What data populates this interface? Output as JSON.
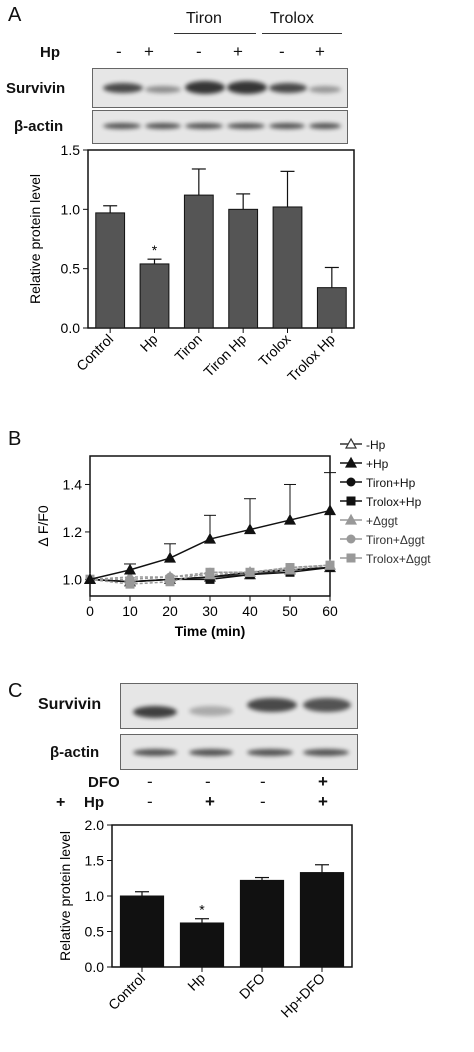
{
  "panelA": {
    "letter": "A",
    "group_tiron": "Tiron",
    "group_trolox": "Trolox",
    "hp_row_label": "Hp",
    "hp_signs": [
      "-",
      "+",
      "-",
      "+",
      "-",
      "+"
    ],
    "blot_survivin_label": "Survivin",
    "blot_actin_label": "β-actin"
  },
  "panelB": {
    "letter": "B",
    "legend": [
      "-Hp",
      "+Hp",
      "Tiron+Hp",
      "Trolox+Hp",
      "+Δggt",
      "Tiron+Δggt",
      "Trolox+Δggt"
    ]
  },
  "panelC": {
    "letter": "C",
    "blot_survivin_label": "Survivin",
    "blot_actin_label": "β-actin",
    "dfo_row_label": "DFO",
    "hp_row_label": "Hp",
    "plus_prefix": "+",
    "dfo_signs": [
      "-",
      "-",
      "-",
      "+"
    ],
    "hp_signs": [
      "-",
      "+",
      "-",
      "+"
    ]
  },
  "chart_data": [
    {
      "type": "bar",
      "categories": [
        "Control",
        "Hp",
        "Tiron",
        "Tiron Hp",
        "Trolox",
        "Trolox Hp"
      ],
      "values": [
        0.97,
        0.54,
        1.12,
        1.0,
        1.02,
        0.34
      ],
      "errors": [
        0.06,
        0.04,
        0.22,
        0.13,
        0.3,
        0.17
      ],
      "significance": [
        "",
        "*",
        "",
        "",
        "",
        ""
      ],
      "ylabel": "Relative protein level",
      "ylim": [
        0,
        1.5
      ],
      "yticks": [
        "0.0",
        "0.5",
        "1.0",
        "1.5"
      ],
      "bar_color": "#555555"
    },
    {
      "type": "line",
      "x": [
        0,
        10,
        20,
        30,
        40,
        50,
        60
      ],
      "xlabel": "Time (min)",
      "ylabel": "Δ F/F0",
      "xticks": [
        "0",
        "10",
        "20",
        "30",
        "40",
        "50",
        "60"
      ],
      "yticks": [
        "1.0",
        "1.2",
        "1.4"
      ],
      "xlim": [
        0,
        60
      ],
      "ylim": [
        0.93,
        1.52
      ],
      "series": [
        {
          "name": "-Hp",
          "values": [
            1.0,
            0.99,
            1.0,
            1.01,
            1.02,
            1.04,
            1.05
          ]
        },
        {
          "name": "+Hp",
          "values": [
            1.0,
            1.04,
            1.09,
            1.17,
            1.21,
            1.25,
            1.29
          ],
          "errors": [
            0,
            0.025,
            0.06,
            0.1,
            0.13,
            0.15,
            0.16
          ]
        },
        {
          "name": "Tiron+Hp",
          "values": [
            1.0,
            0.99,
            1.0,
            1.01,
            1.03,
            1.04,
            1.05
          ]
        },
        {
          "name": "Trolox+Hp",
          "values": [
            1.0,
            0.99,
            1.0,
            1.0,
            1.02,
            1.03,
            1.05
          ]
        },
        {
          "name": "+Δggt",
          "values": [
            1.0,
            1.01,
            1.01,
            1.02,
            1.03,
            1.04,
            1.06
          ]
        },
        {
          "name": "Tiron+Δggt",
          "values": [
            1.0,
            1.0,
            1.01,
            1.03,
            1.03,
            1.05,
            1.06
          ]
        },
        {
          "name": "Trolox+Δggt",
          "values": [
            1.0,
            0.98,
            0.99,
            1.03,
            1.03,
            1.05,
            1.06
          ]
        }
      ]
    },
    {
      "type": "bar",
      "categories": [
        "Control",
        "Hp",
        "DFO",
        "Hp+DFO"
      ],
      "values": [
        1.0,
        0.62,
        1.22,
        1.33
      ],
      "errors": [
        0.06,
        0.06,
        0.04,
        0.11
      ],
      "significance": [
        "",
        "*",
        "",
        ""
      ],
      "ylabel": "Relative protein level",
      "ylim": [
        0,
        2.0
      ],
      "yticks": [
        "0.0",
        "0.5",
        "1.0",
        "1.5",
        "2.0"
      ],
      "bar_color": "#111111"
    }
  ]
}
